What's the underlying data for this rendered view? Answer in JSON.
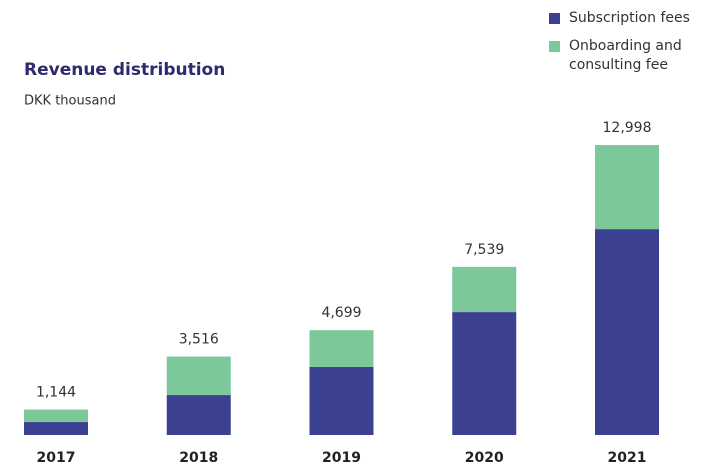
{
  "chart_data": {
    "type": "stacked_bar",
    "title": "Revenue distribution",
    "subtitle": "DKK thousand",
    "categories": [
      "2017",
      "2018",
      "2019",
      "2020",
      "2021"
    ],
    "series": [
      {
        "name": "Subscription fees",
        "color": "#3b4091",
        "values": [
          580,
          1790,
          3050,
          5510,
          9230
        ]
      },
      {
        "name": "Onboarding and consulting fee",
        "color": "#7dc89b",
        "values": [
          564,
          1726,
          1649,
          2029,
          3768
        ]
      }
    ],
    "totals": [
      1144,
      3516,
      4699,
      7539,
      12998
    ],
    "total_labels": [
      "1,144",
      "3,516",
      "4,699",
      "7,539",
      "12,998"
    ],
    "ylim": [
      0,
      13000
    ],
    "legend": "top-right"
  }
}
